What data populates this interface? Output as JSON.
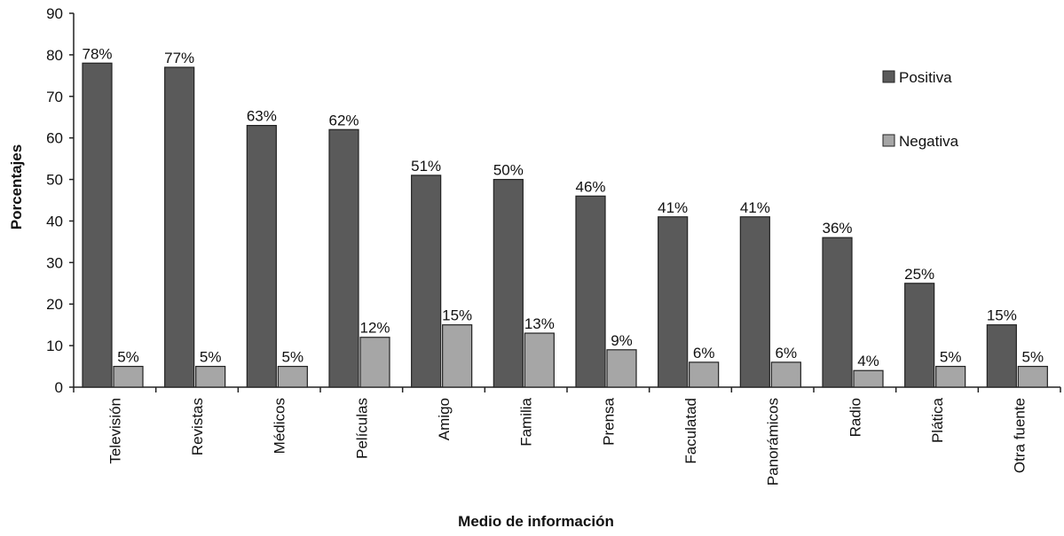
{
  "chart_data": {
    "type": "bar",
    "title": "",
    "xlabel": "Medio de información",
    "ylabel": "Porcentajes",
    "ylim": [
      0,
      90
    ],
    "yticks": [
      0,
      10,
      20,
      30,
      40,
      50,
      60,
      70,
      80,
      90
    ],
    "grid": false,
    "legend_position": "top-right",
    "categories": [
      "Televisión",
      "Revistas",
      "Médicos",
      "Películas",
      "Amigo",
      "Familia",
      "Prensa",
      "Faculatad",
      "Panorámicos",
      "Radio",
      "Plática",
      "Otra fuente"
    ],
    "series": [
      {
        "name": "Positiva",
        "color": "#5a5a5a",
        "values": [
          78,
          77,
          63,
          62,
          51,
          50,
          46,
          41,
          41,
          36,
          25,
          15
        ],
        "labels": [
          "78%",
          "77%",
          "63%",
          "62%",
          "51%",
          "50%",
          "46%",
          "41%",
          "41%",
          "36%",
          "25%",
          "15%"
        ]
      },
      {
        "name": "Negativa",
        "color": "#a6a6a6",
        "values": [
          5,
          5,
          5,
          12,
          15,
          13,
          9,
          6,
          6,
          4,
          5,
          5
        ],
        "labels": [
          "5%",
          "5%",
          "5%",
          "12%",
          "15%",
          "13%",
          "9%",
          "6%",
          "6%",
          "4%",
          "5%",
          "5%"
        ]
      }
    ]
  }
}
